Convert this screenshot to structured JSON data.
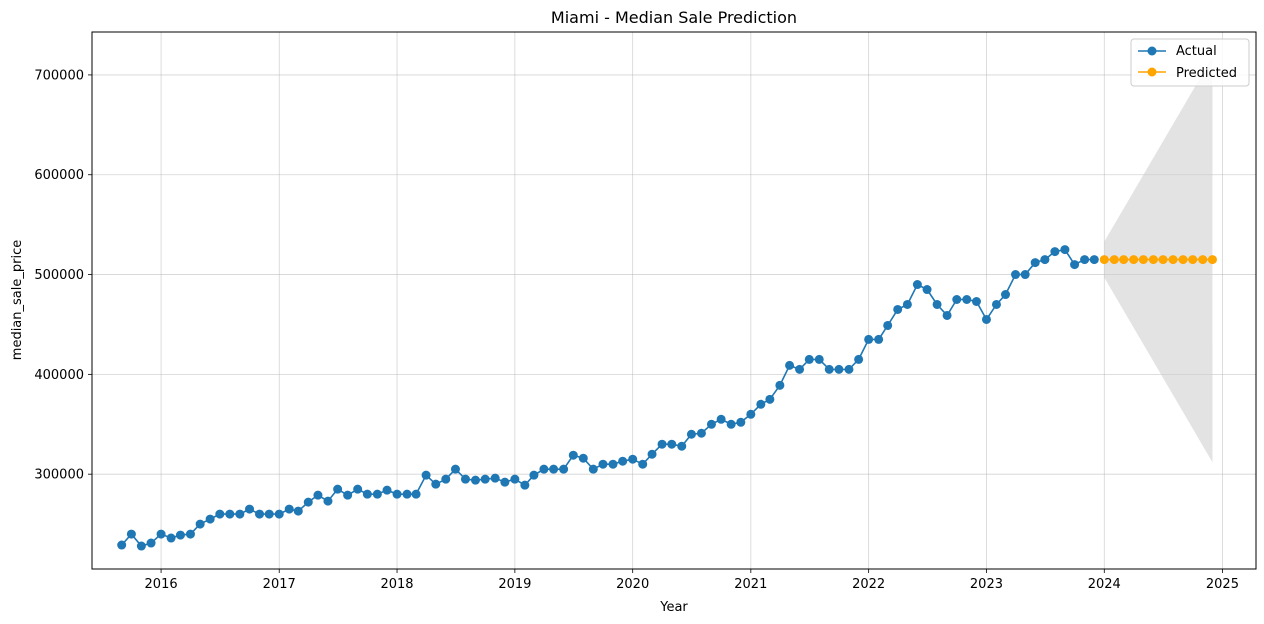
{
  "chart_data": {
    "type": "line",
    "title": "Miami - Median Sale Prediction",
    "xlabel": "Year",
    "ylabel": "median_sale_price",
    "xlim": [
      "2015-06-01",
      "2025-04-15"
    ],
    "ylim": [
      205000,
      743000
    ],
    "x_ticks": [
      "2016-01-01",
      "2017-01-01",
      "2018-01-01",
      "2019-01-01",
      "2020-01-01",
      "2021-01-01",
      "2022-01-01",
      "2023-01-01",
      "2024-01-01",
      "2025-01-01"
    ],
    "x_tick_labels": [
      "2016",
      "2017",
      "2018",
      "2019",
      "2020",
      "2021",
      "2022",
      "2023",
      "2024",
      "2025"
    ],
    "y_ticks": [
      300000,
      400000,
      500000,
      600000,
      700000
    ],
    "y_tick_labels": [
      "300000",
      "400000",
      "500000",
      "600000",
      "700000"
    ],
    "grid": true,
    "legend_position": "top-right",
    "series": [
      {
        "name": "Actual",
        "color": "#1f77b4",
        "marker": "circle",
        "points": [
          [
            "2015-09-01",
            229000
          ],
          [
            "2015-10-01",
            240000
          ],
          [
            "2015-11-01",
            228000
          ],
          [
            "2015-12-01",
            231000
          ],
          [
            "2016-01-01",
            240000
          ],
          [
            "2016-02-01",
            236000
          ],
          [
            "2016-03-01",
            239000
          ],
          [
            "2016-04-01",
            240000
          ],
          [
            "2016-05-01",
            250000
          ],
          [
            "2016-06-01",
            255000
          ],
          [
            "2016-07-01",
            260000
          ],
          [
            "2016-08-01",
            260000
          ],
          [
            "2016-09-01",
            260000
          ],
          [
            "2016-10-01",
            265000
          ],
          [
            "2016-11-01",
            260000
          ],
          [
            "2016-12-01",
            260000
          ],
          [
            "2017-01-01",
            260000
          ],
          [
            "2017-02-01",
            265000
          ],
          [
            "2017-03-01",
            263000
          ],
          [
            "2017-04-01",
            272000
          ],
          [
            "2017-05-01",
            279000
          ],
          [
            "2017-06-01",
            273000
          ],
          [
            "2017-07-01",
            285000
          ],
          [
            "2017-08-01",
            279000
          ],
          [
            "2017-09-01",
            285000
          ],
          [
            "2017-10-01",
            280000
          ],
          [
            "2017-11-01",
            280000
          ],
          [
            "2017-12-01",
            284000
          ],
          [
            "2018-01-01",
            280000
          ],
          [
            "2018-02-01",
            280000
          ],
          [
            "2018-03-01",
            280000
          ],
          [
            "2018-04-01",
            299000
          ],
          [
            "2018-05-01",
            290000
          ],
          [
            "2018-06-01",
            295000
          ],
          [
            "2018-07-01",
            305000
          ],
          [
            "2018-08-01",
            295000
          ],
          [
            "2018-09-01",
            294000
          ],
          [
            "2018-10-01",
            295000
          ],
          [
            "2018-11-01",
            296000
          ],
          [
            "2018-12-01",
            292000
          ],
          [
            "2019-01-01",
            295000
          ],
          [
            "2019-02-01",
            289000
          ],
          [
            "2019-03-01",
            299000
          ],
          [
            "2019-04-01",
            305000
          ],
          [
            "2019-05-01",
            305000
          ],
          [
            "2019-06-01",
            305000
          ],
          [
            "2019-07-01",
            319000
          ],
          [
            "2019-08-01",
            316000
          ],
          [
            "2019-09-01",
            305000
          ],
          [
            "2019-10-01",
            310000
          ],
          [
            "2019-11-01",
            310000
          ],
          [
            "2019-12-01",
            313000
          ],
          [
            "2020-01-01",
            315000
          ],
          [
            "2020-02-01",
            310000
          ],
          [
            "2020-03-01",
            320000
          ],
          [
            "2020-04-01",
            330000
          ],
          [
            "2020-05-01",
            330000
          ],
          [
            "2020-06-01",
            328000
          ],
          [
            "2020-07-01",
            340000
          ],
          [
            "2020-08-01",
            341000
          ],
          [
            "2020-09-01",
            350000
          ],
          [
            "2020-10-01",
            355000
          ],
          [
            "2020-11-01",
            350000
          ],
          [
            "2020-12-01",
            352000
          ],
          [
            "2021-01-01",
            360000
          ],
          [
            "2021-02-01",
            370000
          ],
          [
            "2021-03-01",
            375000
          ],
          [
            "2021-04-01",
            389000
          ],
          [
            "2021-05-01",
            409000
          ],
          [
            "2021-06-01",
            405000
          ],
          [
            "2021-07-01",
            415000
          ],
          [
            "2021-08-01",
            415000
          ],
          [
            "2021-09-01",
            405000
          ],
          [
            "2021-10-01",
            405000
          ],
          [
            "2021-11-01",
            405000
          ],
          [
            "2021-12-01",
            415000
          ],
          [
            "2022-01-01",
            435000
          ],
          [
            "2022-02-01",
            435000
          ],
          [
            "2022-03-01",
            449000
          ],
          [
            "2022-04-01",
            465000
          ],
          [
            "2022-05-01",
            470000
          ],
          [
            "2022-06-01",
            490000
          ],
          [
            "2022-07-01",
            485000
          ],
          [
            "2022-08-01",
            470000
          ],
          [
            "2022-09-01",
            459000
          ],
          [
            "2022-10-01",
            475000
          ],
          [
            "2022-11-01",
            475000
          ],
          [
            "2022-12-01",
            473000
          ],
          [
            "2023-01-01",
            455000
          ],
          [
            "2023-02-01",
            470000
          ],
          [
            "2023-03-01",
            480000
          ],
          [
            "2023-04-01",
            500000
          ],
          [
            "2023-05-01",
            500000
          ],
          [
            "2023-06-01",
            512000
          ],
          [
            "2023-07-01",
            515000
          ],
          [
            "2023-08-01",
            523000
          ],
          [
            "2023-09-01",
            525000
          ],
          [
            "2023-10-01",
            510000
          ],
          [
            "2023-11-01",
            515000
          ],
          [
            "2023-12-01",
            515000
          ]
        ]
      },
      {
        "name": "Predicted",
        "color": "#ffa500",
        "marker": "circle",
        "points": [
          [
            "2024-01-01",
            515000
          ],
          [
            "2024-02-01",
            515000
          ],
          [
            "2024-03-01",
            515000
          ],
          [
            "2024-04-01",
            515000
          ],
          [
            "2024-05-01",
            515000
          ],
          [
            "2024-06-01",
            515000
          ],
          [
            "2024-07-01",
            515000
          ],
          [
            "2024-08-01",
            515000
          ],
          [
            "2024-09-01",
            515000
          ],
          [
            "2024-10-01",
            515000
          ],
          [
            "2024-11-01",
            515000
          ],
          [
            "2024-12-01",
            515000
          ]
        ]
      }
    ],
    "confidence_band": {
      "color": "#cccccc",
      "points": [
        [
          "2024-01-01",
          497000,
          533000
        ],
        [
          "2024-12-01",
          312000,
          718000
        ]
      ]
    }
  }
}
